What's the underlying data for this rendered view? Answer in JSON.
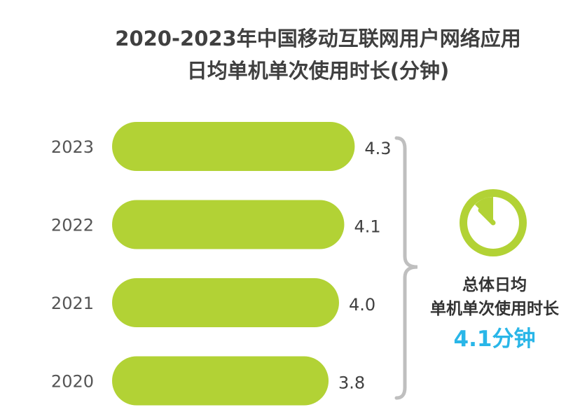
{
  "title_line1": "2020-2023年中国移动互联网用户网络应用",
  "title_line2": "日均单机单次使用时长(分钟)",
  "colors": {
    "bar": "#b2d235",
    "bracket": "#bfbfbf",
    "accent": "#29b6e8",
    "text": "#404040"
  },
  "icon": "stopwatch-icon",
  "chart_data": {
    "type": "bar",
    "orientation": "horizontal",
    "title": "2020-2023年中国移动互联网用户网络应用 日均单机单次使用时长(分钟)",
    "categories": [
      "2023",
      "2022",
      "2021",
      "2020"
    ],
    "values": [
      4.3,
      4.1,
      4.0,
      3.8
    ],
    "value_labels": [
      "4.3",
      "4.1",
      "4.0",
      "3.8"
    ],
    "xlabel": "",
    "ylabel": "",
    "grid": false,
    "legend": "none"
  },
  "summary": {
    "line1": "总体日均",
    "line2": "单机单次使用时长",
    "value": "4.1分钟"
  }
}
